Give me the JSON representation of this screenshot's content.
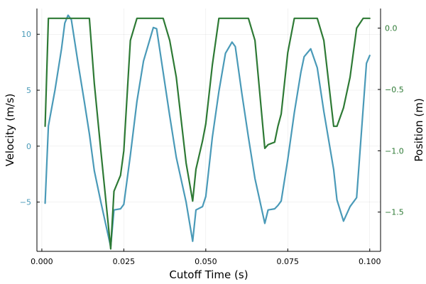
{
  "chart_data": {
    "type": "line",
    "title": "",
    "xlabel": "Cutoff Time (s)",
    "ylabel_left": "Velocity (m/s)",
    "ylabel_right": "Position (m)",
    "xlim": [
      -0.0015,
      0.1033
    ],
    "ylim_left": [
      -9.4,
      12.3
    ],
    "ylim_right": [
      -1.82,
      0.16
    ],
    "x_ticks": [
      0.0,
      0.025,
      0.05,
      0.075,
      0.1
    ],
    "x_tick_labels": [
      "0.000",
      "0.025",
      "0.050",
      "0.075",
      "0.100"
    ],
    "left_ticks": [
      -5,
      0,
      5,
      10
    ],
    "left_tick_labels": [
      "−5",
      "0",
      "5",
      "10"
    ],
    "right_ticks": [
      -1.5,
      -1.0,
      -0.5,
      0.0
    ],
    "right_tick_labels": [
      "−1.5",
      "−1.0",
      "−0.5",
      "0.0"
    ],
    "grid": true,
    "legend": "none",
    "series": [
      {
        "axis": "left",
        "color": "#4a9ab8",
        "x": [
          0.001,
          0.002,
          0.004,
          0.006,
          0.007,
          0.008,
          0.009,
          0.011,
          0.013,
          0.0145,
          0.016,
          0.018,
          0.021,
          0.022,
          0.024,
          0.025,
          0.027,
          0.029,
          0.031,
          0.034,
          0.035,
          0.037,
          0.039,
          0.041,
          0.044,
          0.046,
          0.047,
          0.049,
          0.05,
          0.052,
          0.054,
          0.056,
          0.058,
          0.059,
          0.061,
          0.063,
          0.065,
          0.068,
          0.069,
          0.071,
          0.072,
          0.073,
          0.075,
          0.077,
          0.079,
          0.08,
          0.082,
          0.084,
          0.086,
          0.089,
          0.09,
          0.092,
          0.094,
          0.096,
          0.099,
          0.1
        ],
        "y": [
          -5.1,
          1.8,
          5.0,
          8.7,
          11.0,
          11.7,
          11.3,
          7.5,
          3.9,
          1.1,
          -2.2,
          -5.0,
          -9.0,
          -5.7,
          -5.6,
          -5.2,
          -0.8,
          4.0,
          7.6,
          10.6,
          10.5,
          6.6,
          2.7,
          -1.0,
          -5.0,
          -8.5,
          -5.7,
          -5.4,
          -4.5,
          0.8,
          4.9,
          8.3,
          9.3,
          8.9,
          4.7,
          0.8,
          -2.9,
          -6.9,
          -5.7,
          -5.6,
          -5.3,
          -4.9,
          -1.2,
          3.0,
          6.6,
          8.0,
          8.7,
          7.0,
          3.1,
          -2.1,
          -4.8,
          -6.7,
          -5.4,
          -4.6,
          7.4,
          8.1
        ]
      },
      {
        "axis": "right",
        "color": "#2e7a35",
        "x": [
          0.001,
          0.002,
          0.003,
          0.005,
          0.01,
          0.0145,
          0.016,
          0.018,
          0.021,
          0.022,
          0.024,
          0.025,
          0.027,
          0.029,
          0.031,
          0.035,
          0.037,
          0.039,
          0.041,
          0.044,
          0.046,
          0.047,
          0.049,
          0.05,
          0.052,
          0.054,
          0.06,
          0.063,
          0.065,
          0.068,
          0.069,
          0.071,
          0.072,
          0.073,
          0.075,
          0.077,
          0.082,
          0.084,
          0.086,
          0.089,
          0.09,
          0.092,
          0.094,
          0.096,
          0.098,
          0.1
        ],
        "y": [
          -0.8,
          0.08,
          0.08,
          0.08,
          0.08,
          0.08,
          -0.45,
          -1.0,
          -1.8,
          -1.33,
          -1.2,
          -1.0,
          -0.1,
          0.08,
          0.08,
          0.08,
          0.08,
          -0.1,
          -0.4,
          -1.1,
          -1.41,
          -1.15,
          -0.92,
          -0.78,
          -0.3,
          0.08,
          0.08,
          0.08,
          -0.1,
          -0.98,
          -0.95,
          -0.93,
          -0.8,
          -0.7,
          -0.2,
          0.08,
          0.08,
          0.08,
          -0.1,
          -0.8,
          -0.8,
          -0.65,
          -0.4,
          0.0,
          0.08,
          0.08
        ]
      }
    ]
  }
}
